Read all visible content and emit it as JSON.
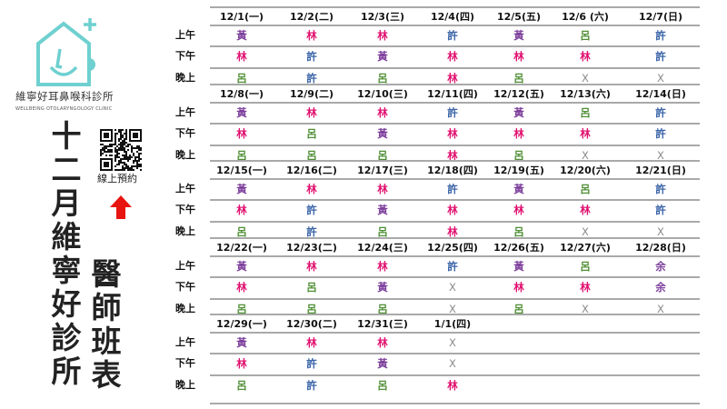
{
  "clinic": {
    "name_zh": "維寧好耳鼻喉科診所",
    "name_en": "WELLBEING OTOLARYNGOLOGY CLINIC"
  },
  "title": {
    "main": "十二月維寧好診所",
    "sub": "醫師班表"
  },
  "booking": {
    "label": "線上預約",
    "arrow_color": "#e8140f"
  },
  "slot_labels": [
    "上午",
    "下午",
    "晚上"
  ],
  "doctor_colors": {
    "黃": "#7d3f9c",
    "林": "#e0106e",
    "許": "#3a64a8",
    "呂": "#4f8f35",
    "余": "#7d3f9c",
    "X": "#8a8a8a"
  },
  "weeks": [
    {
      "dates": [
        "12/1(一)",
        "12/2(二)",
        "12/3(三)",
        "12/4(四)",
        "12/5(五)",
        "12/6 (六)",
        "12/7(日)"
      ],
      "slots": [
        [
          "黃",
          "林",
          "林",
          "許",
          "黃",
          "呂",
          "許"
        ],
        [
          "林",
          "許",
          "黃",
          "林",
          "林",
          "林",
          "許"
        ],
        [
          "呂",
          "許",
          "呂",
          "林",
          "呂",
          "X",
          "X"
        ]
      ]
    },
    {
      "dates": [
        "12/8(一)",
        "12/9(二)",
        "12/10(三)",
        "12/11(四)",
        "12/12(五)",
        "12/13(六)",
        "12/14(日)"
      ],
      "slots": [
        [
          "黃",
          "林",
          "林",
          "許",
          "黃",
          "呂",
          "許"
        ],
        [
          "林",
          "呂",
          "黃",
          "林",
          "林",
          "林",
          "許"
        ],
        [
          "呂",
          "呂",
          "呂",
          "林",
          "呂",
          "X",
          "X"
        ]
      ]
    },
    {
      "dates": [
        "12/15(一)",
        "12/16(二)",
        "12/17(三)",
        "12/18(四)",
        "12/19(五)",
        "12/20(六)",
        "12/21(日)"
      ],
      "slots": [
        [
          "黃",
          "林",
          "林",
          "許",
          "黃",
          "呂",
          "許"
        ],
        [
          "林",
          "許",
          "黃",
          "林",
          "林",
          "林",
          "許"
        ],
        [
          "呂",
          "許",
          "呂",
          "林",
          "呂",
          "X",
          "X"
        ]
      ]
    },
    {
      "dates": [
        "12/22(一)",
        "12/23(二)",
        "12/24(三)",
        "12/25(四)",
        "12/26(五)",
        "12/27(六)",
        "12/28(日)"
      ],
      "slots": [
        [
          "黃",
          "林",
          "林",
          "許",
          "黃",
          "呂",
          "余"
        ],
        [
          "林",
          "呂",
          "黃",
          "X",
          "林",
          "林",
          "余"
        ],
        [
          "呂",
          "呂",
          "呂",
          "X",
          "呂",
          "X",
          "X"
        ]
      ]
    },
    {
      "dates": [
        "12/29(一)",
        "12/30(二)",
        "12/31(三)",
        "1/1(四)"
      ],
      "slots": [
        [
          "黃",
          "林",
          "林",
          "X"
        ],
        [
          "林",
          "許",
          "黃",
          "X"
        ],
        [
          "呂",
          "許",
          "呂",
          "林"
        ]
      ]
    }
  ]
}
